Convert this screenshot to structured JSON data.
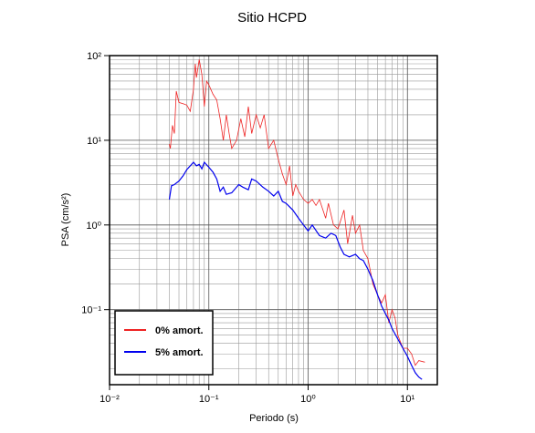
{
  "chart_data": {
    "type": "line",
    "title": "Sitio HCPD",
    "xlabel": "Periodo (s)",
    "ylabel": "PSA (cm/s²)",
    "xscale": "log",
    "yscale": "log",
    "grid": true,
    "legend": "lower left",
    "xlim": [
      0.01,
      20
    ],
    "ylim": [
      0.013,
      100
    ],
    "xticks": [
      {
        "value": 0.01,
        "label": "10⁻²"
      },
      {
        "value": 0.1,
        "label": "10⁻¹"
      },
      {
        "value": 1,
        "label": "10⁰"
      },
      {
        "value": 10,
        "label": "10¹"
      }
    ],
    "yticks": [
      {
        "value": 0.1,
        "label": "10⁻¹"
      },
      {
        "value": 1,
        "label": "10⁰"
      },
      {
        "value": 10,
        "label": "10¹"
      },
      {
        "value": 100,
        "label": "10²"
      }
    ],
    "xminor": [
      0.02,
      0.03,
      0.04,
      0.05,
      0.06,
      0.07,
      0.08,
      0.09,
      0.2,
      0.3,
      0.4,
      0.5,
      0.6,
      0.7,
      0.8,
      0.9,
      2,
      3,
      4,
      5,
      6,
      7,
      8,
      9
    ],
    "yminor": [
      0.02,
      0.03,
      0.04,
      0.05,
      0.06,
      0.07,
      0.08,
      0.09,
      0.2,
      0.3,
      0.4,
      0.5,
      0.6,
      0.7,
      0.8,
      0.9,
      2,
      3,
      4,
      5,
      6,
      7,
      8,
      9,
      20,
      30,
      40,
      50,
      60,
      70,
      80,
      90
    ],
    "series": [
      {
        "name": "0% amort.",
        "color": "#ee2222",
        "x": [
          0.04,
          0.041,
          0.043,
          0.045,
          0.047,
          0.05,
          0.055,
          0.06,
          0.065,
          0.07,
          0.073,
          0.075,
          0.08,
          0.085,
          0.09,
          0.095,
          0.1,
          0.11,
          0.12,
          0.13,
          0.14,
          0.15,
          0.16,
          0.17,
          0.19,
          0.21,
          0.23,
          0.25,
          0.27,
          0.3,
          0.33,
          0.36,
          0.4,
          0.45,
          0.5,
          0.55,
          0.6,
          0.65,
          0.7,
          0.75,
          0.8,
          0.9,
          1.0,
          1.1,
          1.2,
          1.3,
          1.5,
          1.6,
          1.8,
          2.0,
          2.3,
          2.5,
          2.8,
          3.0,
          3.3,
          3.6,
          4.0,
          4.5,
          5,
          5.5,
          6,
          6.5,
          7,
          7.5,
          8,
          9,
          10,
          11,
          12,
          13,
          15
        ],
        "values": [
          9,
          8,
          15,
          12,
          38,
          28,
          27,
          26,
          22,
          40,
          80,
          55,
          90,
          60,
          25,
          50,
          45,
          35,
          30,
          18,
          10,
          20,
          12,
          8,
          10,
          18,
          11,
          25,
          12,
          20,
          14,
          20,
          8,
          10,
          6,
          4,
          3,
          5,
          2.2,
          3,
          2.5,
          2,
          1.8,
          2,
          1.7,
          2.0,
          1.2,
          1.8,
          1.0,
          0.9,
          1.5,
          0.6,
          1.3,
          0.8,
          1.0,
          0.5,
          0.4,
          0.2,
          0.15,
          0.12,
          0.15,
          0.07,
          0.1,
          0.08,
          0.05,
          0.035,
          0.035,
          0.03,
          0.022,
          0.025,
          0.024
        ]
      },
      {
        "name": "5% amort.",
        "color": "#0000ee",
        "x": [
          0.04,
          0.042,
          0.045,
          0.05,
          0.055,
          0.06,
          0.07,
          0.075,
          0.08,
          0.085,
          0.09,
          0.1,
          0.11,
          0.12,
          0.13,
          0.14,
          0.15,
          0.17,
          0.2,
          0.22,
          0.25,
          0.27,
          0.3,
          0.35,
          0.4,
          0.45,
          0.5,
          0.55,
          0.6,
          0.7,
          0.8,
          0.9,
          1.0,
          1.1,
          1.3,
          1.5,
          1.7,
          1.9,
          2.1,
          2.3,
          2.6,
          3.0,
          3.3,
          3.6,
          4.0,
          4.5,
          5.0,
          5.5,
          6,
          6.5,
          7,
          8,
          9,
          10,
          11,
          12,
          13,
          14
        ],
        "values": [
          2.0,
          2.9,
          3.0,
          3.3,
          3.8,
          4.5,
          5.5,
          5.0,
          5.2,
          4.6,
          5.5,
          4.8,
          4.2,
          3.5,
          2.5,
          2.8,
          2.3,
          2.4,
          3.0,
          2.8,
          2.6,
          3.5,
          3.3,
          2.8,
          2.5,
          2.2,
          2.5,
          1.9,
          1.8,
          1.5,
          1.2,
          1.0,
          0.85,
          1.0,
          0.75,
          0.7,
          0.8,
          0.75,
          0.55,
          0.45,
          0.42,
          0.45,
          0.4,
          0.38,
          0.3,
          0.22,
          0.15,
          0.11,
          0.09,
          0.075,
          0.06,
          0.045,
          0.035,
          0.028,
          0.022,
          0.018,
          0.016,
          0.015
        ]
      }
    ]
  }
}
